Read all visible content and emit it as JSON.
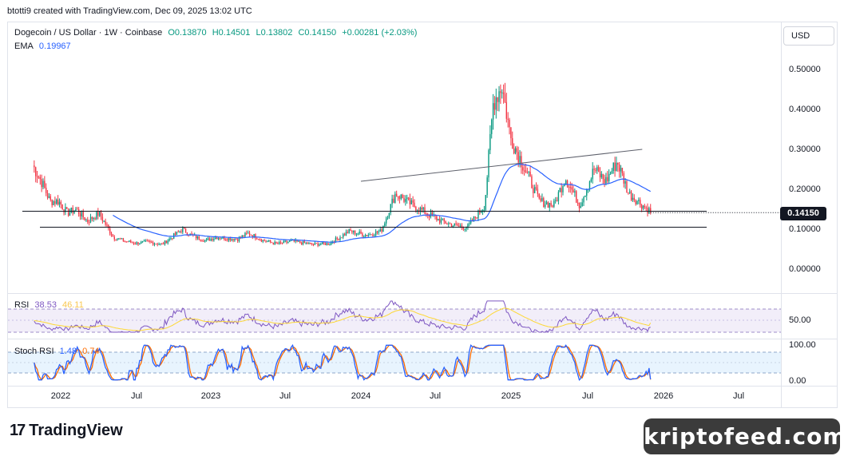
{
  "header": {
    "creator_line": "btotti9 created with TradingView.com, Dec 09, 2025 13:02 UTC"
  },
  "legend": {
    "symbol": "Dogecoin / US Dollar · 1W · Coinbase",
    "open": "O0.13870",
    "high": "H0.14501",
    "low": "L0.13802",
    "close": "C0.14150",
    "change": "+0.00281 (+2.03%)",
    "ema_label": "EMA",
    "ema_value": "0.19967",
    "rsi_label": "RSI",
    "rsi_value": "38.53",
    "rsi_ma_value": "46.11",
    "stoch_label": "Stoch RSI",
    "stoch_k": "1.48",
    "stoch_d": "0.74"
  },
  "currency_button": "USD",
  "price_tag": "0.14150",
  "price_axis": [
    "0.50000",
    "0.40000",
    "0.30000",
    "0.20000",
    "0.10000",
    "0.00000"
  ],
  "rsi_axis": [
    "50.00"
  ],
  "stoch_axis": [
    "100.00",
    "0.00"
  ],
  "time_axis": [
    "2022",
    "Jul",
    "2023",
    "Jul",
    "2024",
    "Jul",
    "2025",
    "Jul",
    "2026",
    "Jul"
  ],
  "brand": {
    "name": "TradingView",
    "logo": "17"
  },
  "watermark": "kriptofeed.com",
  "colors": {
    "up": "#089981",
    "down": "#f23645",
    "ema": "#2962ff",
    "rsi": "#7e57c2",
    "rsi_ma": "#fdd835",
    "stoch_k": "#2962ff",
    "stoch_d": "#ff6d00"
  },
  "chart_data": {
    "type": "candlestick",
    "timeframe": "1W",
    "price_range": [
      0,
      0.5
    ],
    "horizontal_levels": [
      0.145,
      0.105
    ],
    "trendline": {
      "from": [
        "2024-01-01",
        0.22
      ],
      "to": [
        "2025-11-15",
        0.3
      ]
    },
    "price_path": [
      [
        "2021-10-25",
        0.26
      ],
      [
        "2021-11-15",
        0.22
      ],
      [
        "2021-12-06",
        0.17
      ],
      [
        "2021-12-27",
        0.17
      ],
      [
        "2022-01-17",
        0.14
      ],
      [
        "2022-02-07",
        0.15
      ],
      [
        "2022-03-07",
        0.12
      ],
      [
        "2022-04-04",
        0.14
      ],
      [
        "2022-05-09",
        0.08
      ],
      [
        "2022-06-06",
        0.07
      ],
      [
        "2022-07-04",
        0.065
      ],
      [
        "2022-08-01",
        0.068
      ],
      [
        "2022-09-05",
        0.062
      ],
      [
        "2022-10-24",
        0.1
      ],
      [
        "2022-11-14",
        0.085
      ],
      [
        "2022-12-19",
        0.072
      ],
      [
        "2023-01-16",
        0.08
      ],
      [
        "2023-03-06",
        0.075
      ],
      [
        "2023-04-03",
        0.09
      ],
      [
        "2023-05-08",
        0.072
      ],
      [
        "2023-06-12",
        0.063
      ],
      [
        "2023-07-17",
        0.07
      ],
      [
        "2023-09-04",
        0.062
      ],
      [
        "2023-10-16",
        0.064
      ],
      [
        "2023-12-04",
        0.095
      ],
      [
        "2024-01-15",
        0.085
      ],
      [
        "2024-02-19",
        0.095
      ],
      [
        "2024-03-25",
        0.19
      ],
      [
        "2024-05-06",
        0.16
      ],
      [
        "2024-06-10",
        0.14
      ],
      [
        "2024-07-15",
        0.12
      ],
      [
        "2024-08-12",
        0.11
      ],
      [
        "2024-09-16",
        0.105
      ],
      [
        "2024-10-28",
        0.16
      ],
      [
        "2024-11-18",
        0.42
      ],
      [
        "2024-12-09",
        0.46
      ],
      [
        "2024-12-30",
        0.33
      ],
      [
        "2025-02-03",
        0.25
      ],
      [
        "2025-03-10",
        0.17
      ],
      [
        "2025-04-14",
        0.16
      ],
      [
        "2025-05-12",
        0.23
      ],
      [
        "2025-06-16",
        0.16
      ],
      [
        "2025-07-21",
        0.25
      ],
      [
        "2025-08-18",
        0.22
      ],
      [
        "2025-09-15",
        0.27
      ],
      [
        "2025-10-13",
        0.19
      ],
      [
        "2025-11-10",
        0.165
      ],
      [
        "2025-12-08",
        0.1415
      ]
    ],
    "ema_last": 0.19967,
    "rsi_last": 38.53,
    "rsi_ma_last": 46.11,
    "stoch_k_last": 1.48,
    "stoch_d_last": 0.74
  }
}
